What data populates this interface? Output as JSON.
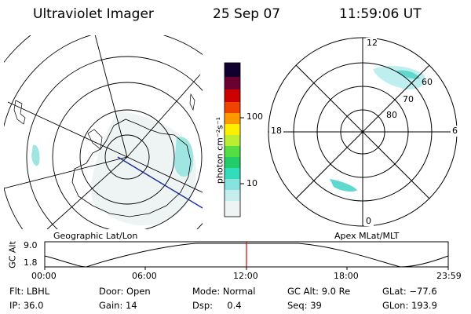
{
  "header": {
    "title": "Ultraviolet Imager",
    "date": "25 Sep 07",
    "time": "11:59:06 UT"
  },
  "colorbar": {
    "unit_label": "photon cm⁻²s⁻¹",
    "ticks": [
      "100",
      "10"
    ]
  },
  "left_map": {
    "caption": "Geographic Lat/Lon"
  },
  "right_map": {
    "caption": "Apex MLat/MLT",
    "mlt_labels": {
      "top": "12",
      "left": "18",
      "right": "6",
      "bottom": "0"
    },
    "lat_labels": [
      "60",
      "70",
      "80"
    ]
  },
  "altitude_plot": {
    "ylabel": "GC Alt",
    "y_ticks": [
      "9.0",
      "1.8"
    ],
    "x_ticks": [
      "00:00",
      "06:00",
      "12:00",
      "18:00",
      "23:59"
    ],
    "current_time_fraction": 0.5
  },
  "footer": {
    "flt": "Flt: LBHL",
    "door": "Door: Open",
    "mode": "Mode: Normal",
    "gc_alt": "GC Alt: 9.0 Re",
    "glat": "GLat: −77.6",
    "ip": "IP: 36.0",
    "gain": "Gain: 14",
    "dsp": "Dsp:     0.4",
    "seq": "Seq: 39",
    "glon": "GLon: 193.9"
  },
  "colors": {
    "emission": "#8fe3df",
    "grid": "#000000",
    "track": "#1a2a9a",
    "time_marker": "#dd0000"
  }
}
